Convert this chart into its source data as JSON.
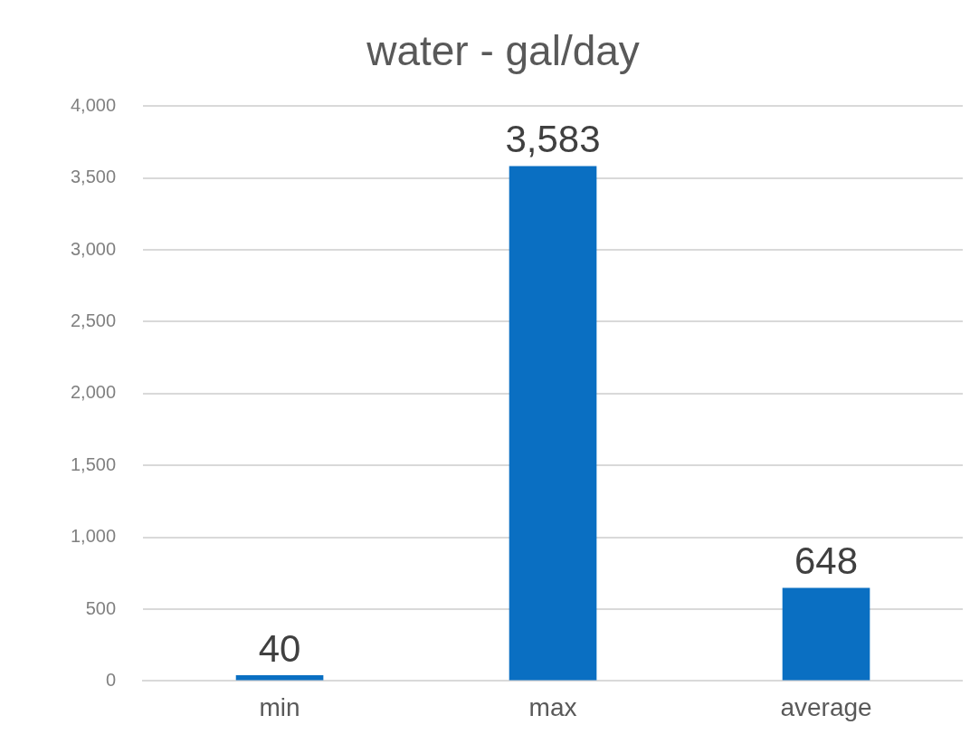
{
  "chart_data": {
    "type": "bar",
    "title": "water - gal/day",
    "categories": [
      "min",
      "max",
      "average"
    ],
    "values": [
      40,
      3583,
      648
    ],
    "value_labels": [
      "40",
      "3,583",
      "648"
    ],
    "color": "#0a6fc2",
    "ylim": [
      0,
      4000
    ],
    "yticks": [
      0,
      500,
      {
        "value": 1000,
        "label": "1,000"
      },
      {
        "value": 1500,
        "label": "1,500"
      },
      {
        "value": 2000,
        "label": "2,000"
      },
      {
        "value": 2500,
        "label": "2,500"
      },
      {
        "value": 3000,
        "label": "3,000"
      },
      {
        "value": 3500,
        "label": "3,500"
      },
      {
        "value": 4000,
        "label": "4,000"
      }
    ],
    "grid": "y",
    "legend": false
  }
}
